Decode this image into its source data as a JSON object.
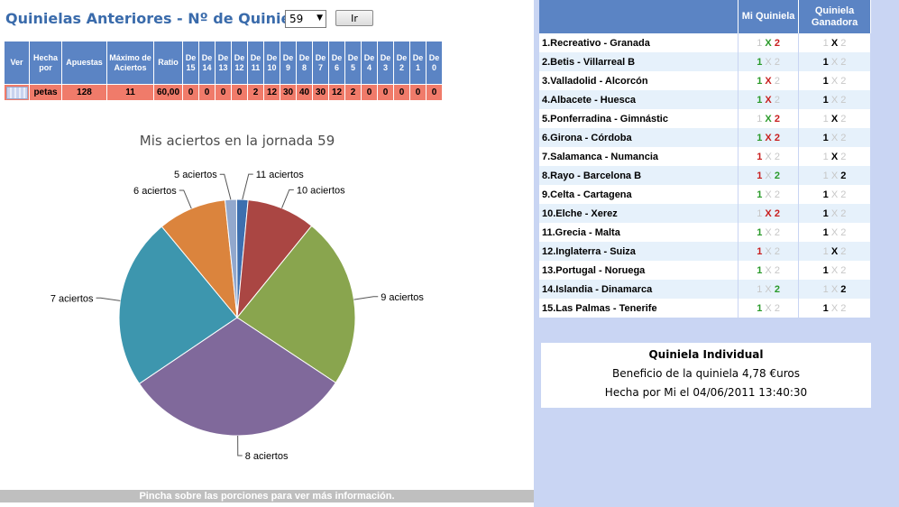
{
  "header": {
    "title": "Quinielas Anteriores - Nº de Quiniela",
    "selected_quiniela": "59",
    "go_label": "Ir"
  },
  "stats_table": {
    "headers": [
      "Ver",
      "Hecha por",
      "Apuestas",
      "Máximo de Aciertos",
      "Ratio",
      "De 15",
      "De 14",
      "De 13",
      "De 12",
      "De 11",
      "De 10",
      "De 9",
      "De 8",
      "De 7",
      "De 6",
      "De 5",
      "De 4",
      "De 3",
      "De 2",
      "De 1",
      "De 0"
    ],
    "row": [
      "",
      "petas",
      "128",
      "11",
      "60,00",
      "0",
      "0",
      "0",
      "0",
      "2",
      "12",
      "30",
      "40",
      "30",
      "12",
      "2",
      "0",
      "0",
      "0",
      "0",
      "0"
    ]
  },
  "chart_data": {
    "type": "pie",
    "title": "Mis aciertos en la jornada 59",
    "slices": [
      {
        "label": "11 aciertos",
        "value": 2,
        "color": "#3d6faf"
      },
      {
        "label": "10 aciertos",
        "value": 12,
        "color": "#aa4643"
      },
      {
        "label": "9 aciertos",
        "value": 30,
        "color": "#89a54e"
      },
      {
        "label": "8 aciertos",
        "value": 40,
        "color": "#80699b"
      },
      {
        "label": "7 aciertos",
        "value": 30,
        "color": "#3d96ae"
      },
      {
        "label": "6 aciertos",
        "value": 12,
        "color": "#db843d"
      },
      {
        "label": "5 aciertos",
        "value": 2,
        "color": "#92a8cd"
      }
    ],
    "footer": "Pincha sobre las porciones para ver más información."
  },
  "results_table": {
    "col_my": "Mi Quiniela",
    "col_winner": "Quiniela Ganadora",
    "rows": [
      {
        "match": "1.Recreativo - Granada",
        "my": "X2",
        "win": "X"
      },
      {
        "match": "2.Betis - Villarreal B",
        "my": "1",
        "win": "1"
      },
      {
        "match": "3.Valladolid - Alcorcón",
        "my": "1X",
        "win": "1"
      },
      {
        "match": "4.Albacete - Huesca",
        "my": "1X",
        "win": "1"
      },
      {
        "match": "5.Ponferradina - Gimnástic",
        "my": "X2",
        "win": "X"
      },
      {
        "match": "6.Girona - Córdoba",
        "my": "1X2",
        "win": "1"
      },
      {
        "match": "7.Salamanca - Numancia",
        "my": "1",
        "win": "X"
      },
      {
        "match": "8.Rayo - Barcelona B",
        "my": "12",
        "win": "2"
      },
      {
        "match": "9.Celta - Cartagena",
        "my": "1",
        "win": "1"
      },
      {
        "match": "10.Elche - Xerez",
        "my": "X2",
        "win": "1"
      },
      {
        "match": "11.Grecia - Malta",
        "my": "1",
        "win": "1"
      },
      {
        "match": "12.Inglaterra - Suiza",
        "my": "1",
        "win": "X"
      },
      {
        "match": "13.Portugal - Noruega",
        "my": "1",
        "win": "1"
      },
      {
        "match": "14.Islandia - Dinamarca",
        "my": "2",
        "win": "2"
      },
      {
        "match": "15.Las Palmas - Tenerife",
        "my": "1",
        "win": "1"
      }
    ]
  },
  "summary": {
    "title": "Quiniela Individual",
    "benefit": "Beneficio de la quiniela 4,78 €uros",
    "made_by": "Hecha por Mi el 04/06/2011 13:40:30"
  }
}
